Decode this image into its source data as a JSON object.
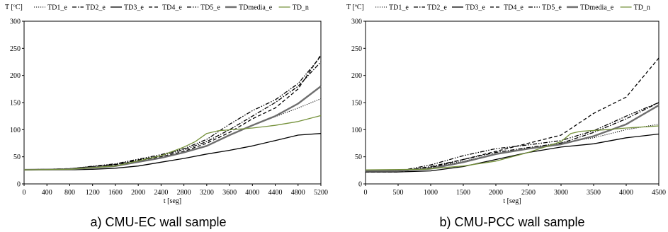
{
  "chart_data": [
    {
      "type": "line",
      "caption": "a) CMU-EC wall sample",
      "ylabel": "T [ºC]",
      "xlabel": "t [seg]",
      "xlim": [
        0,
        5200
      ],
      "ylim": [
        0,
        300
      ],
      "x_ticks": [
        "0",
        "400",
        "800",
        "1200",
        "1600",
        "2000",
        "2400",
        "2800",
        "3200",
        "3600",
        "4000",
        "4400",
        "4800",
        "5200"
      ],
      "y_ticks": [
        "0",
        "50",
        "100",
        "150",
        "200",
        "250",
        "300"
      ],
      "legend_position": "top",
      "grid": false,
      "series": [
        {
          "name": "TD1_e",
          "color": "#000000",
          "dash": "dotted",
          "points": [
            [
              0,
              26
            ],
            [
              800,
              27
            ],
            [
              1600,
              33
            ],
            [
              2400,
              48
            ],
            [
              2800,
              58
            ],
            [
              3200,
              70
            ],
            [
              3600,
              90
            ],
            [
              4000,
              108
            ],
            [
              4400,
              124
            ],
            [
              4800,
              140
            ],
            [
              5200,
              157
            ]
          ]
        },
        {
          "name": "TD2_e",
          "color": "#000000",
          "dash": "dash-dot",
          "points": [
            [
              0,
              26
            ],
            [
              800,
              28
            ],
            [
              1600,
              36
            ],
            [
              2400,
              52
            ],
            [
              2800,
              63
            ],
            [
              3200,
              78
            ],
            [
              3600,
              100
            ],
            [
              4000,
              125
            ],
            [
              4400,
              150
            ],
            [
              4800,
              180
            ],
            [
              5200,
              225
            ]
          ]
        },
        {
          "name": "TD3_e",
          "color": "#000000",
          "dash": "solid",
          "points": [
            [
              0,
              26
            ],
            [
              800,
              26
            ],
            [
              1200,
              27
            ],
            [
              1600,
              29
            ],
            [
              2000,
              33
            ],
            [
              2400,
              40
            ],
            [
              2800,
              47
            ],
            [
              3200,
              55
            ],
            [
              3600,
              62
            ],
            [
              4000,
              70
            ],
            [
              4400,
              80
            ],
            [
              4800,
              90
            ],
            [
              5200,
              93
            ]
          ]
        },
        {
          "name": "TD4_e",
          "color": "#000000",
          "dash": "dashed",
          "points": [
            [
              0,
              26
            ],
            [
              800,
              28
            ],
            [
              1600,
              35
            ],
            [
              2400,
              50
            ],
            [
              2800,
              60
            ],
            [
              3200,
              75
            ],
            [
              3600,
              95
            ],
            [
              4000,
              120
            ],
            [
              4400,
              140
            ],
            [
              4800,
              175
            ],
            [
              5200,
              238
            ]
          ]
        },
        {
          "name": "TD5_e",
          "color": "#000000",
          "dash": "dash-dot-dot",
          "points": [
            [
              0,
              26
            ],
            [
              800,
              28
            ],
            [
              1600,
              37
            ],
            [
              2400,
              54
            ],
            [
              2800,
              65
            ],
            [
              3200,
              82
            ],
            [
              3600,
              110
            ],
            [
              4000,
              135
            ],
            [
              4400,
              155
            ],
            [
              4800,
              185
            ],
            [
              5200,
              235
            ]
          ]
        },
        {
          "name": "TDmedia_e",
          "color": "#6e6e6e",
          "dash": "solid-thick",
          "points": [
            [
              0,
              26
            ],
            [
              800,
              27
            ],
            [
              1600,
              33
            ],
            [
              2400,
              48
            ],
            [
              2800,
              58
            ],
            [
              3200,
              70
            ],
            [
              3600,
              90
            ],
            [
              4000,
              108
            ],
            [
              4400,
              125
            ],
            [
              4800,
              148
            ],
            [
              5200,
              180
            ]
          ]
        },
        {
          "name": "TD_n",
          "color": "#76923c",
          "dash": "solid",
          "points": [
            [
              0,
              26
            ],
            [
              800,
              27
            ],
            [
              1600,
              33
            ],
            [
              2400,
              52
            ],
            [
              2800,
              68
            ],
            [
              3000,
              78
            ],
            [
              3200,
              93
            ],
            [
              3400,
              98
            ],
            [
              4000,
              103
            ],
            [
              4400,
              108
            ],
            [
              4800,
              115
            ],
            [
              5200,
              126
            ]
          ]
        }
      ]
    },
    {
      "type": "line",
      "caption": "b) CMU-PCC wall sample",
      "ylabel": "T [ºC]",
      "xlabel": "t [seg]",
      "xlim": [
        0,
        4500
      ],
      "ylim": [
        0,
        300
      ],
      "x_ticks": [
        "0",
        "500",
        "1000",
        "1500",
        "2000",
        "2500",
        "3000",
        "3500",
        "4000",
        "4500"
      ],
      "y_ticks": [
        "0",
        "50",
        "100",
        "150",
        "200",
        "250",
        "300"
      ],
      "legend_position": "top",
      "grid": false,
      "series": [
        {
          "name": "TD1_e",
          "color": "#000000",
          "dash": "dotted",
          "points": [
            [
              0,
              25
            ],
            [
              600,
              25
            ],
            [
              1000,
              30
            ],
            [
              1500,
              42
            ],
            [
              2000,
              55
            ],
            [
              2500,
              65
            ],
            [
              3000,
              76
            ],
            [
              3500,
              85
            ],
            [
              4000,
              100
            ],
            [
              4500,
              110
            ]
          ]
        },
        {
          "name": "TD2_e",
          "color": "#000000",
          "dash": "dash-dot",
          "points": [
            [
              0,
              25
            ],
            [
              600,
              25
            ],
            [
              1000,
              32
            ],
            [
              1500,
              45
            ],
            [
              2000,
              58
            ],
            [
              2500,
              67
            ],
            [
              3000,
              75
            ],
            [
              3500,
              95
            ],
            [
              4000,
              120
            ],
            [
              4500,
              150
            ]
          ]
        },
        {
          "name": "TD3_e",
          "color": "#000000",
          "dash": "solid",
          "points": [
            [
              0,
              22
            ],
            [
              500,
              22
            ],
            [
              1000,
              24
            ],
            [
              1500,
              32
            ],
            [
              2000,
              45
            ],
            [
              2500,
              58
            ],
            [
              3000,
              68
            ],
            [
              3500,
              74
            ],
            [
              4000,
              85
            ],
            [
              4500,
              92
            ]
          ]
        },
        {
          "name": "TD4_e",
          "color": "#000000",
          "dash": "dashed",
          "points": [
            [
              0,
              22
            ],
            [
              500,
              22
            ],
            [
              1000,
              30
            ],
            [
              1500,
              45
            ],
            [
              2000,
              60
            ],
            [
              2500,
              75
            ],
            [
              3000,
              90
            ],
            [
              3500,
              130
            ],
            [
              4000,
              160
            ],
            [
              4500,
              232
            ]
          ]
        },
        {
          "name": "TD5_e",
          "color": "#000000",
          "dash": "dash-dot-dot",
          "points": [
            [
              0,
              25
            ],
            [
              600,
              26
            ],
            [
              1000,
              35
            ],
            [
              1500,
              52
            ],
            [
              2000,
              65
            ],
            [
              2500,
              72
            ],
            [
              3000,
              80
            ],
            [
              3500,
              98
            ],
            [
              4000,
              125
            ],
            [
              4500,
              150
            ]
          ]
        },
        {
          "name": "TDmedia_e",
          "color": "#6e6e6e",
          "dash": "solid-thick",
          "points": [
            [
              0,
              24
            ],
            [
              500,
              24
            ],
            [
              1000,
              28
            ],
            [
              1500,
              40
            ],
            [
              2000,
              55
            ],
            [
              2500,
              65
            ],
            [
              3000,
              73
            ],
            [
              3500,
              88
            ],
            [
              4000,
              110
            ],
            [
              4500,
              145
            ]
          ]
        },
        {
          "name": "TD_n",
          "color": "#76923c",
          "dash": "solid",
          "points": [
            [
              0,
              26
            ],
            [
              900,
              27
            ],
            [
              1500,
              33
            ],
            [
              2000,
              42
            ],
            [
              2500,
              58
            ],
            [
              3000,
              78
            ],
            [
              3150,
              93
            ],
            [
              3300,
              97
            ],
            [
              3700,
              100
            ],
            [
              4000,
              103
            ],
            [
              4500,
              107
            ]
          ]
        }
      ]
    }
  ]
}
